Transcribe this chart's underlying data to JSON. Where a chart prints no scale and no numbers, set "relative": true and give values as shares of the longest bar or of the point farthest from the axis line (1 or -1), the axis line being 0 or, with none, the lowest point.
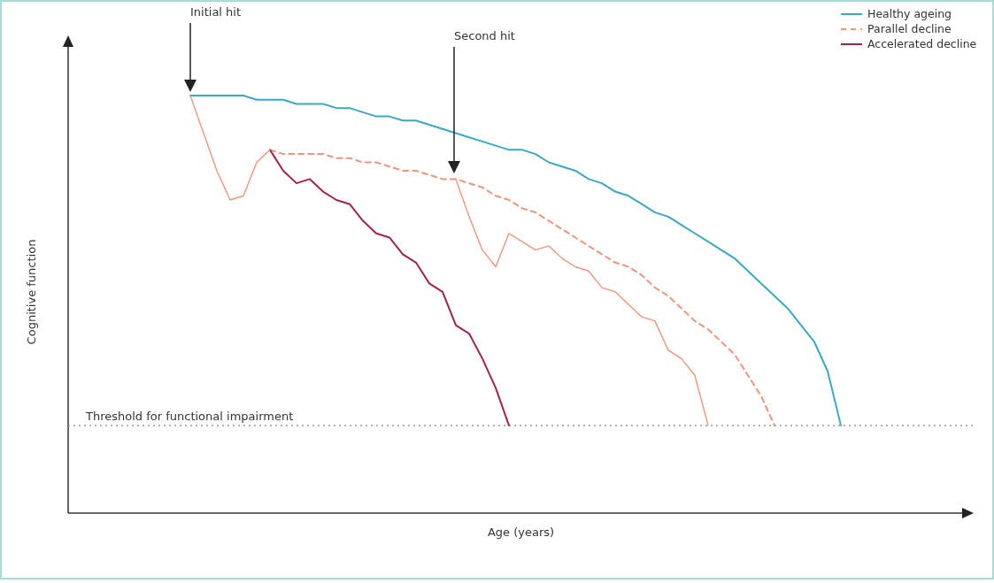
{
  "chart_data": {
    "type": "line",
    "relative": true,
    "xlabel": "Age (years)",
    "ylabel": "Cognitive function",
    "tick_labels": false,
    "grid": false,
    "legend": "top right",
    "marker": "none",
    "categories": [
      null,
      null,
      null,
      null,
      null,
      null,
      null,
      null,
      null,
      null,
      null,
      null,
      null,
      null,
      null,
      null,
      null,
      null,
      null,
      null,
      null,
      null,
      null,
      null,
      null,
      null,
      null,
      null,
      null,
      null,
      null,
      null,
      null,
      null,
      null,
      null,
      null,
      null,
      null,
      null,
      null,
      null,
      null,
      null,
      null,
      null,
      null,
      null,
      null,
      null,
      null,
      null,
      null,
      null,
      null,
      null,
      null,
      null,
      null,
      null,
      null,
      null,
      null,
      null,
      null,
      null,
      null,
      null
    ],
    "series": [
      {
        "name": "Healthy ageing",
        "color": "#3aa9c4",
        "values": [
          null,
          null,
          null,
          null,
          null,
          null,
          null,
          null,
          null,
          1.0,
          1.0,
          1.0,
          1.0,
          1.0,
          0.99,
          0.99,
          0.99,
          0.98,
          0.98,
          0.98,
          0.97,
          0.97,
          0.96,
          0.95,
          0.95,
          0.94,
          0.94,
          0.93,
          0.92,
          0.91,
          0.9,
          0.89,
          0.88,
          0.87,
          0.87,
          0.86,
          0.84,
          0.83,
          0.82,
          0.8,
          0.79,
          0.77,
          0.76,
          0.74,
          0.72,
          0.71,
          0.69,
          0.67,
          0.65,
          0.63,
          0.61,
          0.58,
          0.55,
          0.52,
          0.49,
          0.45,
          0.41,
          0.34,
          0.21,
          null,
          null,
          null,
          null,
          null,
          null,
          null,
          null,
          null
        ]
      },
      {
        "name": "Parallel decline",
        "color": "#f0957c",
        "line_style": "dashed",
        "values": [
          null,
          null,
          null,
          null,
          null,
          null,
          null,
          null,
          null,
          null,
          null,
          null,
          null,
          null,
          null,
          0.87,
          0.86,
          0.86,
          0.86,
          0.86,
          0.85,
          0.85,
          0.84,
          0.84,
          0.83,
          0.82,
          0.82,
          0.81,
          0.8,
          0.8,
          0.79,
          0.78,
          0.76,
          0.75,
          0.73,
          0.72,
          0.7,
          0.68,
          0.66,
          0.64,
          0.62,
          0.6,
          0.59,
          0.57,
          0.54,
          0.52,
          0.49,
          0.46,
          0.44,
          0.41,
          0.38,
          0.33,
          0.28,
          0.21,
          null,
          null,
          null,
          null,
          null,
          null,
          null,
          null,
          null,
          null,
          null,
          null,
          null,
          null
        ]
      },
      {
        "name": "Accelerated decline",
        "color": "#a3224f",
        "values": [
          null,
          null,
          null,
          null,
          null,
          null,
          null,
          null,
          null,
          null,
          null,
          null,
          null,
          null,
          null,
          0.87,
          0.82,
          0.79,
          0.8,
          0.77,
          0.75,
          0.74,
          0.7,
          0.67,
          0.66,
          0.62,
          0.6,
          0.55,
          0.53,
          0.45,
          0.43,
          0.37,
          0.3,
          0.21,
          null,
          null,
          null,
          null,
          null,
          null,
          null,
          null,
          null,
          null,
          null,
          null,
          null,
          null,
          null,
          null,
          null,
          null,
          null,
          null,
          null,
          null,
          null,
          null,
          null,
          null,
          null,
          null,
          null,
          null,
          null,
          null,
          null,
          null
        ]
      },
      {
        "color": "#f0957c",
        "values": [
          null,
          null,
          null,
          null,
          null,
          null,
          null,
          null,
          null,
          1.0,
          0.91,
          0.82,
          0.75,
          0.76,
          0.84,
          0.87,
          null,
          null,
          null,
          null,
          null,
          null,
          null,
          null,
          null,
          null,
          null,
          null,
          null,
          0.8,
          0.71,
          0.63,
          0.59,
          0.67,
          0.65,
          0.63,
          0.64,
          0.61,
          0.59,
          0.58,
          0.54,
          0.53,
          0.5,
          0.47,
          0.46,
          0.39,
          0.37,
          0.33,
          0.21,
          null,
          null,
          null,
          null,
          null,
          null,
          null,
          null,
          null,
          null,
          null,
          null,
          null,
          null,
          null,
          null,
          null,
          null,
          null
        ]
      }
    ],
    "ref_lines": [
      {
        "axis": "y",
        "value": 0.21,
        "label": "Threshold for functional impairment",
        "color": "#9a9a9a",
        "line_style": "dotted"
      }
    ],
    "annotations": [
      "Initial hit",
      "Second hit"
    ]
  }
}
